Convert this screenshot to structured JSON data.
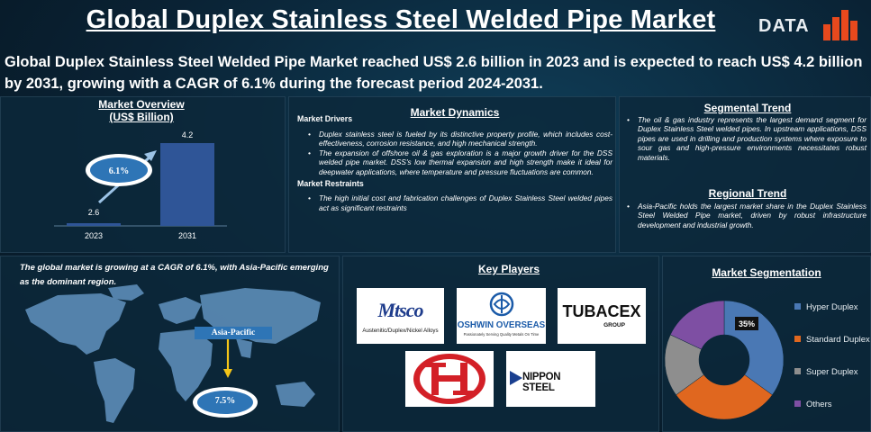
{
  "header": {
    "title": "Global Duplex Stainless Steel Welded Pipe Market",
    "logo_text": "DATA",
    "subtitle": "Global Duplex Stainless Steel Welded Pipe Market reached US$ 2.6 billion in 2023 and is expected to reach US$ 4.2 billion by 2031, growing with a CAGR of 6.1% during the forecast period 2024-2031."
  },
  "overview": {
    "title_line1": "Market Overview",
    "title_line2": "(US$ Billion)",
    "cagr_badge": "6.1%"
  },
  "chart_data": [
    {
      "type": "bar",
      "title": "Market Overview (US$ Billion)",
      "categories": [
        "2023",
        "2031"
      ],
      "values": [
        2.6,
        4.2
      ],
      "value_labels": [
        "2.6",
        "4.2"
      ]
    },
    {
      "type": "pie",
      "title": "Market Segmentation",
      "categories": [
        "Hyper Duplex",
        "Standard Duplex",
        "Super Duplex",
        "Others"
      ],
      "values": [
        35,
        30,
        17,
        18
      ],
      "data_labels": [
        "35%"
      ],
      "colors": [
        "#4a78b4",
        "#e0671f",
        "#8e8e8e",
        "#7e4fa3"
      ]
    }
  ],
  "dynamics": {
    "title": "Market Dynamics",
    "drivers_heading": "Market Drivers",
    "drivers": [
      "Duplex stainless steel is fueled by its distinctive property profile, which includes cost-effectiveness, corrosion resistance, and high mechanical strength.",
      "The expansion of offshore oil & gas exploration is a major growth driver for the DSS welded pipe market. DSS's low thermal expansion and high strength make it ideal for deepwater applications, where temperature and pressure fluctuations are common."
    ],
    "restraints_heading": "Market Restraints",
    "restraints": [
      "The high initial cost and fabrication challenges of Duplex Stainless Steel welded pipes act as significant restraints"
    ]
  },
  "trends": {
    "segmental_title": "Segmental Trend",
    "segmental": "The oil & gas industry represents the largest demand segment for Duplex Stainless Steel welded pipes. In upstream applications, DSS pipes are used in drilling and production systems where exposure to sour gas and high-pressure environments necessitates robust materials.",
    "regional_title": "Regional Trend",
    "regional": "Asia-Pacific holds the largest market share in the Duplex Stainless Steel Welded Pipe market, driven by robust infrastructure development and industrial growth."
  },
  "map": {
    "caption_pre": "The global market is growing at a CAGR of ",
    "caption_cagr": "6.1%",
    "caption_mid": ", with ",
    "caption_region": "Asia-Pacific",
    "caption_post": " emerging as the dominant region.",
    "region_label": "Asia-Pacific",
    "region_value": "7.5%"
  },
  "players": {
    "title": "Key Players",
    "list": [
      {
        "name": "Mtsco",
        "tagline": "Austenitic/Duplex/Nickel Alloys"
      },
      {
        "name": "OSHWIN OVERSEAS",
        "tagline": "Passionately Serving Quality Metals On Time"
      },
      {
        "name": "TUBACEX",
        "tagline": "GROUP"
      },
      {
        "name": "H-emblem logo"
      },
      {
        "name": "NIPPON STEEL"
      }
    ]
  },
  "segmentation": {
    "title": "Market Segmentation"
  },
  "colors": {
    "bar": "#2f5597",
    "accent_orange": "#e8491d",
    "badge_blue": "#2e75b6"
  }
}
